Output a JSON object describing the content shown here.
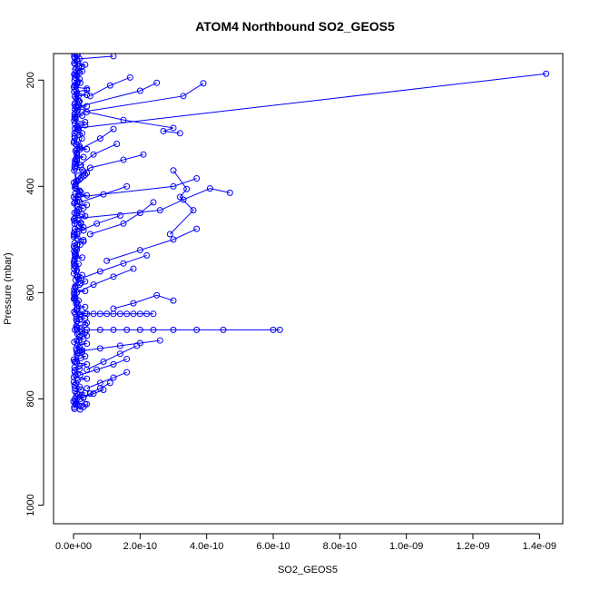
{
  "chart_data": {
    "type": "line",
    "title": "ATOM4 Northbound SO2_GEOS5",
    "xlabel": "SO2_GEOS5",
    "ylabel": "Pressure (mbar)",
    "xlim": [
      -6e-11,
      1.47e-09
    ],
    "ylim": [
      1035,
      150
    ],
    "y_inverted": true,
    "x_ticks": [
      0,
      2e-10,
      4e-10,
      6e-10,
      8e-10,
      1e-09,
      1.2e-09,
      1.4e-09
    ],
    "x_tick_labels": [
      "0.0e+00",
      "2.0e-10",
      "4.0e-10",
      "6.0e-10",
      "8.0e-10",
      "1.0e-09",
      "1.2e-09",
      "1.4e-09"
    ],
    "y_ticks": [
      200,
      400,
      600,
      800,
      1000
    ],
    "y_tick_labels": [
      "200",
      "400",
      "600",
      "800",
      "1000"
    ],
    "marker": "open-circle",
    "grid": false,
    "legend": "none",
    "color": "#0000ff",
    "series": [
      {
        "x": [
          2e-12,
          5e-12,
          1e-11,
          8e-12,
          1.5e-11,
          6e-12,
          3e-12,
          1.2e-11,
          2.5e-11,
          1e-11,
          5e-12,
          2e-12,
          8e-12,
          1.8e-11,
          4e-12,
          9e-12,
          3e-12,
          1.1e-11,
          2e-11,
          7e-12,
          5e-12,
          1.3e-11,
          6e-12,
          2e-12,
          1e-11,
          8e-12,
          4e-12,
          1.6e-11,
          9e-12,
          3e-12
        ],
        "y": [
          150,
          170,
          190,
          210,
          230,
          250,
          270,
          290,
          310,
          330,
          350,
          370,
          390,
          410,
          430,
          450,
          470,
          490,
          510,
          530,
          550,
          570,
          590,
          610,
          630,
          650,
          670,
          690,
          710,
          730
        ]
      },
      {
        "x": [
          1.42e-09,
          1.5e-11,
          3e-12
        ],
        "y": [
          188,
          290,
          300
        ]
      },
      {
        "x": [
          1.2e-10,
          1.8e-11,
          2.5e-11,
          5e-12,
          2e-11,
          8e-12
        ],
        "y": [
          155,
          160,
          175,
          190,
          205,
          220
        ]
      },
      {
        "x": [
          1.7e-10,
          1.1e-10,
          5e-11
        ],
        "y": [
          195,
          210,
          230
        ]
      },
      {
        "x": [
          3.9e-10,
          3.3e-10,
          2.5e-11
        ],
        "y": [
          206,
          230,
          260
        ]
      },
      {
        "x": [
          2.5e-10,
          2e-10,
          1.5e-11
        ],
        "y": [
          205,
          220,
          250
        ]
      },
      {
        "x": [
          1.5e-11,
          4e-11,
          1.5e-10,
          3e-10,
          2.7e-10,
          3.2e-10
        ],
        "y": [
          240,
          260,
          275,
          290,
          296,
          300
        ]
      },
      {
        "x": [
          1.2e-10,
          8e-11,
          2e-11
        ],
        "y": [
          292,
          310,
          330
        ]
      },
      {
        "x": [
          1.3e-10,
          6e-11,
          2e-11
        ],
        "y": [
          320,
          340,
          360
        ]
      },
      {
        "x": [
          2.1e-10,
          1.5e-10,
          5e-11,
          1.5e-11
        ],
        "y": [
          340,
          350,
          365,
          380
        ]
      },
      {
        "x": [
          3.7e-10,
          3e-10,
          1.5e-11
        ],
        "y": [
          385,
          400,
          420
        ]
      },
      {
        "x": [
          4.7e-10,
          4.1e-10,
          3.3e-10,
          2.6e-10,
          1.5e-11
        ],
        "y": [
          412,
          404,
          425,
          445,
          460
        ]
      },
      {
        "x": [
          3e-10,
          3.4e-10,
          3.2e-10,
          3.6e-10,
          2.9e-10
        ],
        "y": [
          370,
          405,
          420,
          445,
          490
        ]
      },
      {
        "x": [
          1.6e-10,
          9e-11,
          2e-11
        ],
        "y": [
          400,
          415,
          430
        ]
      },
      {
        "x": [
          2.4e-10,
          2e-10,
          1.5e-10,
          5e-11
        ],
        "y": [
          430,
          450,
          470,
          490
        ]
      },
      {
        "x": [
          1.4e-10,
          7e-11,
          1.5e-11
        ],
        "y": [
          455,
          470,
          485
        ]
      },
      {
        "x": [
          3.7e-10,
          3e-10,
          2e-10,
          1e-10
        ],
        "y": [
          480,
          500,
          520,
          540
        ]
      },
      {
        "x": [
          2.2e-10,
          1.5e-10,
          8e-11,
          1.5e-11
        ],
        "y": [
          530,
          545,
          560,
          575
        ]
      },
      {
        "x": [
          1.8e-10,
          1.2e-10,
          6e-11,
          1e-11
        ],
        "y": [
          555,
          570,
          585,
          600
        ]
      },
      {
        "x": [
          3e-10,
          2.5e-10,
          1.8e-10,
          1.2e-10
        ],
        "y": [
          615,
          605,
          620,
          630
        ]
      },
      {
        "x": [
          2.4e-10,
          2.2e-10,
          2e-10,
          1.8e-10,
          1.6e-10,
          1.4e-10,
          1.2e-10,
          1e-10,
          8e-11,
          6e-11,
          4e-11,
          2e-11,
          5e-12
        ],
        "y": [
          640,
          640,
          640,
          640,
          640,
          640,
          640,
          640,
          640,
          640,
          640,
          640,
          640
        ]
      },
      {
        "x": [
          6.2e-10,
          6e-10,
          4.5e-10,
          3.7e-10,
          3e-10,
          2.4e-10,
          2e-10,
          1.6e-10,
          1.2e-10,
          8e-11,
          4e-11,
          1e-11
        ],
        "y": [
          670,
          670,
          670,
          670,
          670,
          670,
          670,
          670,
          670,
          670,
          670,
          670
        ]
      },
      {
        "x": [
          2.6e-10,
          2e-10,
          1.4e-10,
          8e-11,
          2e-11
        ],
        "y": [
          690,
          695,
          700,
          705,
          710
        ]
      },
      {
        "x": [
          1.9e-10,
          1.4e-10,
          9e-11,
          4e-11
        ],
        "y": [
          700,
          715,
          730,
          745
        ]
      },
      {
        "x": [
          1.6e-10,
          1.2e-10,
          7e-11,
          2e-11
        ],
        "y": [
          725,
          735,
          745,
          755
        ]
      },
      {
        "x": [
          1.6e-10,
          1.2e-10,
          8e-11,
          4e-11
        ],
        "y": [
          750,
          760,
          770,
          780
        ]
      },
      {
        "x": [
          1.1e-10,
          8e-11,
          5e-11,
          2e-11,
          5e-12
        ],
        "y": [
          770,
          780,
          790,
          800,
          810
        ]
      },
      {
        "x": [
          9e-11,
          6e-11,
          3e-11,
          1e-11
        ],
        "y": [
          783,
          790,
          797,
          790
        ]
      },
      {
        "x": [
          4e-11,
          3e-11,
          2e-11,
          1e-11,
          0
        ],
        "y": [
          810,
          815,
          820,
          810,
          805
        ]
      }
    ],
    "dense_points": {
      "x": [
        1e-12,
        2e-12,
        3e-12,
        4e-12,
        5e-12,
        6e-12,
        8e-12,
        1e-11,
        1.2e-11,
        1.5e-11,
        1.8e-11,
        2.2e-11,
        2.6e-11,
        3e-11,
        3.5e-11,
        4e-11
      ],
      "y_range": [
        150,
        820
      ]
    }
  }
}
